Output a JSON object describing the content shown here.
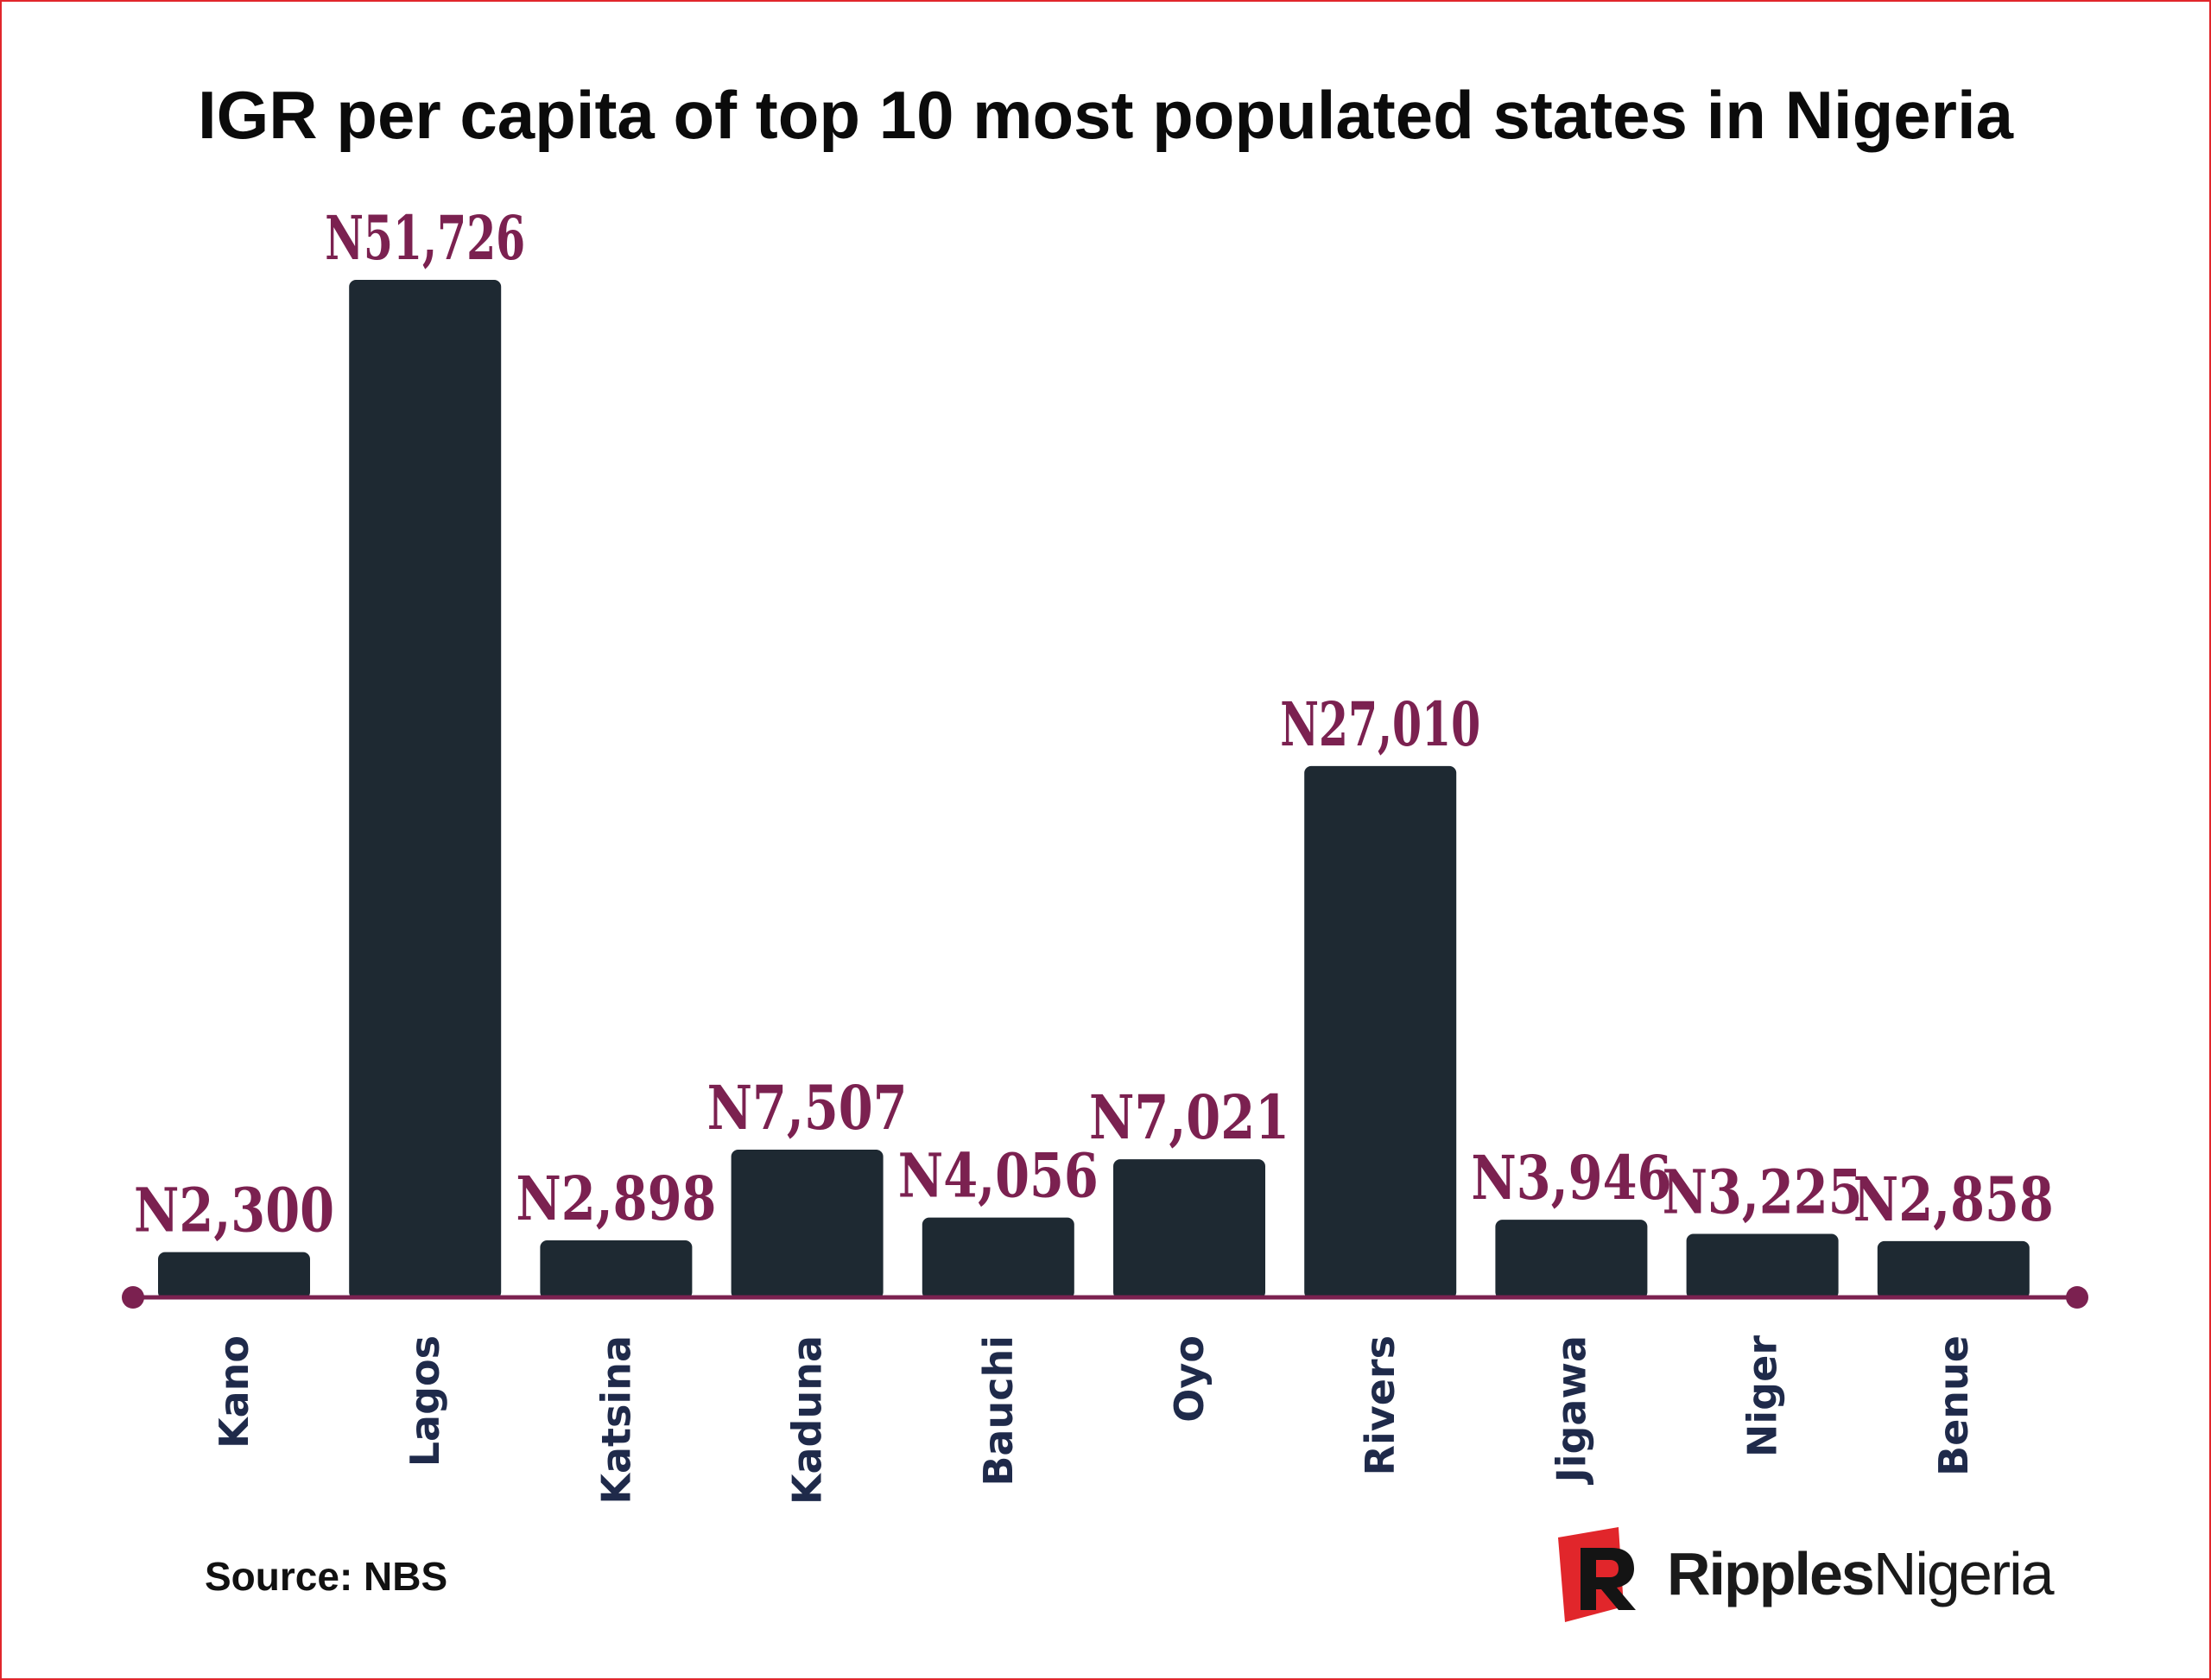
{
  "page": {
    "title": "IGR per capita of top 10 most populated states in Nigeria",
    "source": "Source: NBS",
    "logo": {
      "part1": "Ripples",
      "part2": "Nigeria",
      "mark_color": "#e1262b"
    }
  },
  "colors": {
    "bar": "#1e2932",
    "value_label": "#7b2150",
    "axis": "#7b2150",
    "category_label": "#1f2a4a",
    "border": "#e1262b"
  },
  "chart_data": {
    "type": "bar",
    "title": "IGR per capita of top 10 most populated states in Nigeria",
    "xlabel": "",
    "ylabel": "",
    "categories": [
      "Kano",
      "Lagos",
      "Katsina",
      "Kaduna",
      "Bauchi",
      "Oyo",
      "Rivers",
      "Jigawa",
      "Niger",
      "Benue"
    ],
    "values": [
      2300,
      51726,
      2898,
      7507,
      4056,
      7021,
      27010,
      3946,
      3225,
      2858
    ],
    "data_labels": [
      "N2,300",
      "N51,726",
      "N2,898",
      "N7,507",
      "N4,056",
      "N7,021",
      "N27,010",
      "N3,946",
      "N3,225",
      "N2,858"
    ],
    "ylim": [
      0,
      51726
    ],
    "grid": false,
    "legend": "none",
    "category_label_orientation": "vertical"
  }
}
